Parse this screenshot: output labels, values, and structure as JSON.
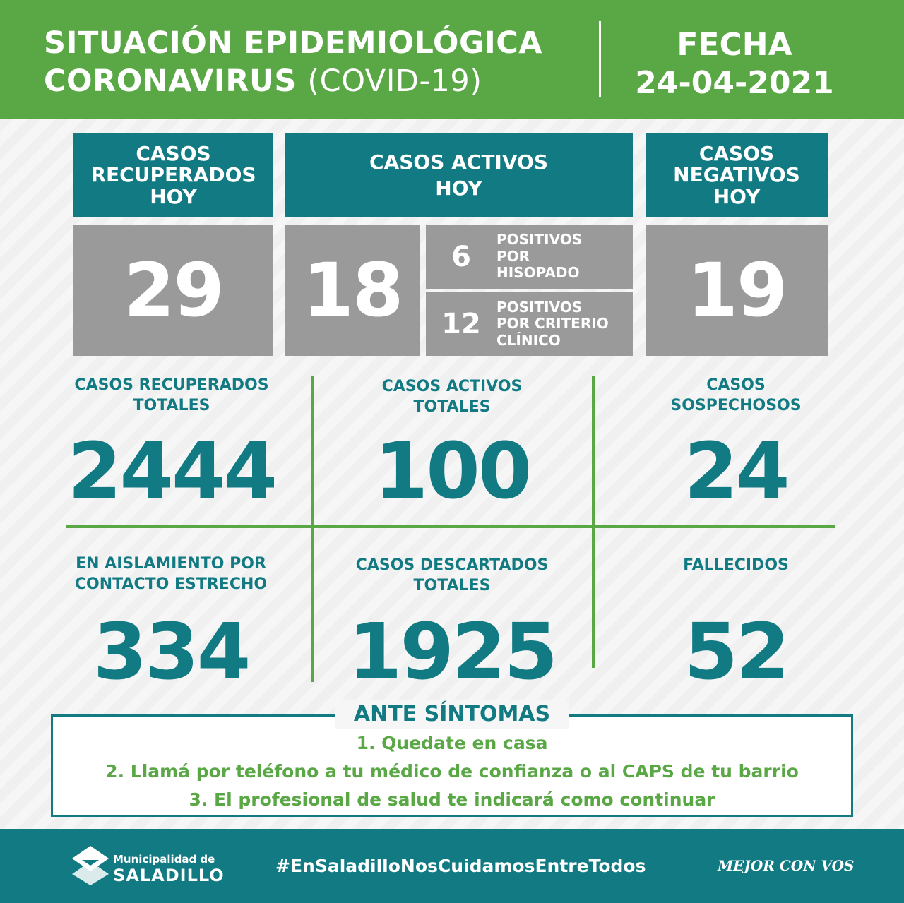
{
  "header": {
    "title_line1": "SITUACIÓN EPIDEMIOLÓGICA",
    "title_line2_bold": "CORONAVIRUS",
    "title_line2_light": "(COVID-19)",
    "fecha_label": "FECHA",
    "fecha_value": "24-04-2021"
  },
  "today": {
    "recuperados": {
      "label": "CASOS RECUPERADOS HOY",
      "value": "29"
    },
    "activos": {
      "label_line1": "CASOS ACTIVOS",
      "label_line2": "HOY",
      "value": "18",
      "breakdown": [
        {
          "value": "6",
          "label_lines": [
            "POSITIVOS",
            "POR",
            "HISOPADO"
          ]
        },
        {
          "value": "12",
          "label_lines": [
            "POSITIVOS",
            "POR CRITERIO",
            "CLÍNICO"
          ]
        }
      ]
    },
    "negativos": {
      "label": "CASOS NEGATIVOS HOY",
      "value": "19"
    }
  },
  "totals": [
    {
      "label_lines": [
        "CASOS RECUPERADOS",
        "TOTALES"
      ],
      "value": "2444"
    },
    {
      "label_lines": [
        "CASOS ACTIVOS",
        "TOTALES"
      ],
      "value": "100"
    },
    {
      "label_lines": [
        "CASOS",
        "SOSPECHOSOS"
      ],
      "value": "24"
    },
    {
      "label_lines": [
        "EN AISLAMIENTO POR",
        "CONTACTO ESTRECHO"
      ],
      "value": "334"
    },
    {
      "label_lines": [
        "CASOS DESCARTADOS",
        "TOTALES"
      ],
      "value": "1925"
    },
    {
      "label_lines": [
        "FALLECIDOS"
      ],
      "value": "52"
    }
  ],
  "symptoms": {
    "title": "ANTE SÍNTOMAS",
    "items": [
      "1. Quedate en casa",
      "2. Llamá por teléfono a tu médico de confianza o al CAPS de tu barrio",
      "3. El profesional de salud te indicará como continuar"
    ]
  },
  "footer": {
    "logo_small": "Municipalidad de",
    "logo_big": "SALADILLO",
    "hashtag": "#EnSaladilloNosCuidamosEntreTodos",
    "slogan": "MEJOR CON VOS"
  },
  "colors": {
    "green": "#5aa745",
    "teal": "#117a82",
    "gray": "#9a9a9a"
  }
}
